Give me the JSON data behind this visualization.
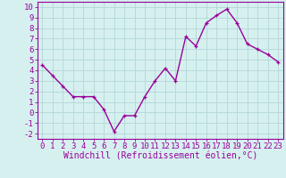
{
  "x": [
    0,
    1,
    2,
    3,
    4,
    5,
    6,
    7,
    8,
    9,
    10,
    11,
    12,
    13,
    14,
    15,
    16,
    17,
    18,
    19,
    20,
    21,
    22,
    23
  ],
  "y": [
    4.5,
    3.5,
    2.5,
    1.5,
    1.5,
    1.5,
    0.3,
    -1.8,
    -0.3,
    -0.3,
    1.5,
    3.0,
    4.2,
    3.0,
    7.2,
    6.3,
    8.5,
    9.2,
    9.8,
    8.5,
    6.5,
    6.0,
    5.5,
    4.8
  ],
  "line_color": "#990099",
  "marker": "+",
  "bg_color": "#d6f0f0",
  "grid_color": "#b8dada",
  "xlabel": "Windchill (Refroidissement éolien,°C)",
  "xlim": [
    -0.5,
    23.5
  ],
  "ylim": [
    -2.5,
    10.5
  ],
  "yticks": [
    -2,
    -1,
    0,
    1,
    2,
    3,
    4,
    5,
    6,
    7,
    8,
    9,
    10
  ],
  "xticks": [
    0,
    1,
    2,
    3,
    4,
    5,
    6,
    7,
    8,
    9,
    10,
    11,
    12,
    13,
    14,
    15,
    16,
    17,
    18,
    19,
    20,
    21,
    22,
    23
  ],
  "axis_color": "#990099",
  "tick_color": "#990099",
  "xlabel_color": "#990099",
  "xlabel_fontsize": 7,
  "tick_fontsize": 6.5,
  "linewidth": 1.0,
  "markersize": 3.5,
  "markeredgewidth": 0.9
}
